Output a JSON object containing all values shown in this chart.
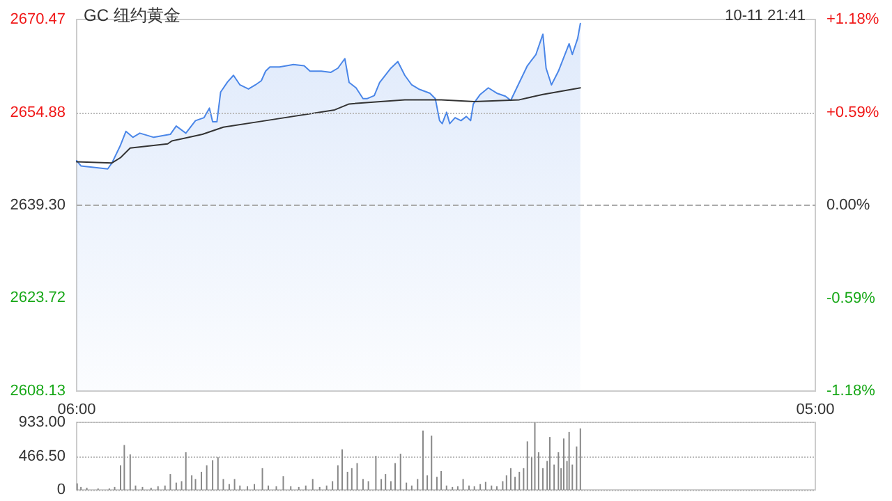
{
  "chart_data": [
    {
      "type": "line",
      "title": "GC 纽约黄金",
      "annotations": [
        "10-11 21:41"
      ],
      "xlim": [
        "--10-11T06:00",
        "--10-12T05:00"
      ],
      "xticks": [
        {
          "value": "--10-11T06:00",
          "label": "06:00"
        },
        {
          "value": "--10-12T05:00",
          "label": "05:00"
        }
      ],
      "ylim": [
        2608.13,
        2670.47
      ],
      "yticks": [
        2608.13,
        2623.72,
        {
          "value": 2639.3,
          "label": "2639.30"
        },
        2654.88,
        2670.47
      ],
      "y2lim": [
        -1.18,
        1.18
      ],
      "y2ticks": [
        {
          "value": -1.18,
          "label": "-1.18%"
        },
        {
          "value": -0.59,
          "label": "-0.59%"
        },
        {
          "value": 0,
          "label": "0.00%"
        },
        {
          "value": 0.59,
          "label": "+0.59%"
        },
        {
          "value": 1.18,
          "label": "+1.18%"
        }
      ],
      "grid": false,
      "ref_lines": [
        {
          "axis": "y",
          "value": 2654.88,
          "color": "#bbbbbb",
          "line_style": "dotted"
        },
        {
          "axis": "y",
          "value": 2639.3,
          "color": "#aaaaaa",
          "line_style": "dashed"
        }
      ],
      "series": [
        {
          "type": "area",
          "color": "#4a86e8",
          "x": [
            "--10-11T06:00",
            "--10-11T06:08",
            "--10-11T06:58",
            "--10-11T07:06",
            "--10-11T07:22",
            "--10-11T07:32",
            "--10-11T07:45",
            "--10-11T07:58",
            "--10-11T08:24",
            "--10-11T08:55",
            "--10-11T09:06",
            "--10-11T09:24",
            "--10-11T09:42",
            "--10-11T09:58",
            "--10-11T10:08",
            "--10-11T10:14",
            "--10-11T10:22",
            "--10-11T10:29",
            "--10-11T10:42",
            "--10-11T10:53",
            "--10-11T11:05",
            "--10-11T11:21",
            "--10-11T11:34",
            "--10-11T11:45",
            "--10-11T11:53",
            "--10-11T12:01",
            "--10-11T12:19",
            "--10-11T12:45",
            "--10-11T13:05",
            "--10-11T13:16",
            "--10-11T13:37",
            "--10-11T13:55",
            "--10-11T14:08",
            "--10-11T14:21",
            "--10-11T14:29",
            "--10-11T14:42",
            "--10-11T14:55",
            "--10-11T15:03",
            "--10-11T15:16",
            "--10-11T15:26",
            "--10-11T15:47",
            "--10-11T16:00",
            "--10-11T16:13",
            "--10-11T16:26",
            "--10-11T16:39",
            "--10-11T17:00",
            "--10-11T17:10",
            "--10-11T17:18",
            "--10-11T17:23",
            "--10-11T17:31",
            "--10-11T17:37",
            "--10-11T17:47",
            "--10-11T17:58",
            "--10-11T18:08",
            "--10-11T18:16",
            "--10-11T18:21",
            "--10-11T18:34",
            "--10-11T18:49",
            "--10-11T19:05",
            "--10-11T19:21",
            "--10-11T19:31",
            "--10-11T19:47",
            "--10-11T20:02",
            "--10-11T20:18",
            "--10-11T20:31",
            "--10-11T20:37",
            "--10-11T20:47",
            "--10-11T21:00",
            "--10-11T21:10",
            "--10-11T21:20",
            "--10-11T21:26",
            "--10-11T21:36",
            "--10-11T21:41"
          ],
          "values": [
            2646.8,
            2645.9,
            2645.4,
            2646.4,
            2649.4,
            2651.7,
            2650.7,
            2651.4,
            2650.7,
            2651.2,
            2652.6,
            2651.4,
            2653.5,
            2654.0,
            2655.6,
            2653.3,
            2653.3,
            2658.3,
            2660.0,
            2661.1,
            2659.5,
            2658.8,
            2659.5,
            2660.2,
            2661.8,
            2662.5,
            2662.5,
            2662.9,
            2662.7,
            2661.8,
            2661.8,
            2661.6,
            2662.3,
            2663.9,
            2659.9,
            2659.0,
            2657.2,
            2657.2,
            2657.7,
            2659.9,
            2662.3,
            2663.4,
            2661.1,
            2659.5,
            2658.8,
            2658.1,
            2657.2,
            2653.5,
            2653.0,
            2654.9,
            2653.0,
            2654.0,
            2653.5,
            2654.2,
            2653.5,
            2656.3,
            2657.9,
            2659.0,
            2658.1,
            2657.6,
            2656.9,
            2659.9,
            2662.7,
            2664.6,
            2668.0,
            2662.3,
            2659.5,
            2661.8,
            2664.1,
            2666.4,
            2664.6,
            2667.3,
            2669.8
          ]
        },
        {
          "type": "line",
          "color": "#333333",
          "x": [
            "--10-11T06:00",
            "--10-11T07:06",
            "--10-11T07:22",
            "--10-11T07:40",
            "--10-11T08:50",
            "--10-11T08:58",
            "--10-11T09:55",
            "--10-11T10:34",
            "--10-11T11:53",
            "--10-11T14:02",
            "--10-11T14:29",
            "--10-11T16:13",
            "--10-11T17:21",
            "--10-11T18:23",
            "--10-11T19:47",
            "--10-11T20:31",
            "--10-11T21:41"
          ],
          "values": [
            2646.6,
            2646.4,
            2647.3,
            2648.9,
            2649.6,
            2650.1,
            2651.2,
            2652.4,
            2653.5,
            2655.3,
            2656.3,
            2657.0,
            2657.0,
            2656.7,
            2657.0,
            2657.9,
            2659.0
          ]
        }
      ]
    },
    {
      "type": "bar",
      "color": "#888888",
      "tick_labels": "y",
      "grid": "y",
      "xlim": [
        "--10-11T06:00",
        "--10-12T05:00"
      ],
      "ylim": [
        0,
        933
      ],
      "yticks": [
        0,
        {
          "value": 466.5,
          "label": "466.50"
        },
        {
          "value": 933,
          "label": "933.00"
        }
      ],
      "x": [
        "--10-11T06:01",
        "--10-11T06:08",
        "--10-11T06:19",
        "--10-11T06:40",
        "--10-11T07:01",
        "--10-11T07:11",
        "--10-11T07:22",
        "--10-11T07:29",
        "--10-11T07:40",
        "--10-11T07:50",
        "--10-11T08:03",
        "--10-11T08:19",
        "--10-11T08:32",
        "--10-11T08:45",
        "--10-11T08:55",
        "--10-11T09:06",
        "--10-11T09:16",
        "--10-11T09:24",
        "--10-11T09:35",
        "--10-11T09:42",
        "--10-11T09:53",
        "--10-11T10:03",
        "--10-11T10:14",
        "--10-11T10:24",
        "--10-11T10:34",
        "--10-11T10:45",
        "--10-11T10:55",
        "--10-11T11:05",
        "--10-11T11:19",
        "--10-11T11:32",
        "--10-11T11:47",
        "--10-11T11:58",
        "--10-11T12:13",
        "--10-11T12:26",
        "--10-11T12:40",
        "--10-11T12:55",
        "--10-11T13:08",
        "--10-11T13:21",
        "--10-11T13:34",
        "--10-11T13:47",
        "--10-11T13:58",
        "--10-11T14:08",
        "--10-11T14:16",
        "--10-11T14:26",
        "--10-11T14:34",
        "--10-11T14:44",
        "--10-11T14:55",
        "--10-11T15:05",
        "--10-11T15:19",
        "--10-11T15:29",
        "--10-11T15:37",
        "--10-11T15:47",
        "--10-11T15:55",
        "--10-11T16:05",
        "--10-11T16:16",
        "--10-11T16:26",
        "--10-11T16:37",
        "--10-11T16:47",
        "--10-11T16:55",
        "--10-11T17:03",
        "--10-11T17:13",
        "--10-11T17:21",
        "--10-11T17:31",
        "--10-11T17:42",
        "--10-11T17:52",
        "--10-11T18:02",
        "--10-11T18:13",
        "--10-11T18:23",
        "--10-11T18:34",
        "--10-11T18:44",
        "--10-11T18:55",
        "--10-11T19:05",
        "--10-11T19:16",
        "--10-11T19:23",
        "--10-11T19:31",
        "--10-11T19:39",
        "--10-11T19:47",
        "--10-11T19:55",
        "--10-11T20:02",
        "--10-11T20:10",
        "--10-11T20:16",
        "--10-11T20:23",
        "--10-11T20:31",
        "--10-11T20:39",
        "--10-11T20:44",
        "--10-11T20:52",
        "--10-11T21:00",
        "--10-11T21:05",
        "--10-11T21:10",
        "--10-11T21:16",
        "--10-11T21:20",
        "--10-11T21:26",
        "--10-11T21:34",
        "--10-11T21:41"
      ],
      "values": [
        90,
        40,
        30,
        20,
        20,
        40,
        340,
        620,
        490,
        60,
        40,
        30,
        50,
        60,
        220,
        100,
        120,
        520,
        200,
        150,
        250,
        340,
        410,
        450,
        150,
        80,
        150,
        60,
        50,
        80,
        300,
        60,
        50,
        190,
        50,
        40,
        60,
        150,
        40,
        60,
        120,
        340,
        560,
        250,
        300,
        370,
        150,
        120,
        470,
        150,
        220,
        120,
        370,
        500,
        100,
        60,
        150,
        820,
        200,
        750,
        180,
        260,
        60,
        40,
        50,
        150,
        60,
        50,
        80,
        110,
        60,
        50,
        120,
        200,
        300,
        180,
        250,
        300,
        670,
        450,
        930,
        520,
        300,
        400,
        730,
        350,
        520,
        300,
        710,
        400,
        800,
        350,
        600,
        850
      ]
    }
  ]
}
